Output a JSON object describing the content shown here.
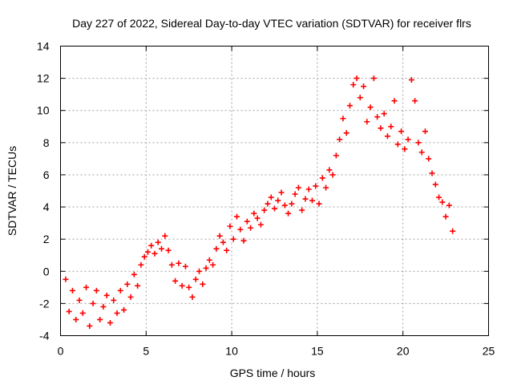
{
  "chart_data": {
    "type": "scatter",
    "title": "Day 227 of 2022, Sidereal Day-to-day VTEC variation (SDTVAR) for receiver flrs",
    "xlabel": "GPS time / hours",
    "ylabel": "SDTVAR / TECUs",
    "xlim": [
      0,
      25
    ],
    "ylim": [
      -4,
      14
    ],
    "x_ticks": [
      "0",
      "5",
      "10",
      "15",
      "20",
      "25"
    ],
    "y_ticks": [
      "-4",
      "-2",
      "0",
      "2",
      "4",
      "6",
      "8",
      "10",
      "12",
      "14"
    ],
    "grid": true,
    "marker": "plus",
    "color": "#ff0000",
    "series": [
      {
        "name": "SDTVAR",
        "x": [
          0.3,
          0.5,
          0.7,
          0.9,
          1.1,
          1.3,
          1.5,
          1.7,
          1.9,
          2.1,
          2.3,
          2.5,
          2.7,
          2.9,
          3.1,
          3.3,
          3.5,
          3.7,
          3.9,
          4.1,
          4.3,
          4.5,
          4.7,
          4.9,
          5.1,
          5.3,
          5.5,
          5.7,
          5.9,
          6.1,
          6.3,
          6.5,
          6.7,
          6.9,
          7.1,
          7.3,
          7.5,
          7.7,
          7.9,
          8.1,
          8.3,
          8.5,
          8.7,
          8.9,
          9.1,
          9.3,
          9.5,
          9.7,
          9.9,
          10.1,
          10.3,
          10.5,
          10.7,
          10.9,
          11.1,
          11.3,
          11.5,
          11.7,
          11.9,
          12.1,
          12.3,
          12.5,
          12.7,
          12.9,
          13.1,
          13.3,
          13.5,
          13.7,
          13.9,
          14.1,
          14.3,
          14.5,
          14.7,
          14.9,
          15.1,
          15.3,
          15.5,
          15.7,
          15.9,
          16.1,
          16.3,
          16.5,
          16.7,
          16.9,
          17.1,
          17.3,
          17.5,
          17.7,
          17.9,
          18.1,
          18.3,
          18.5,
          18.7,
          18.9,
          19.1,
          19.3,
          19.5,
          19.7,
          19.9,
          20.1,
          20.3,
          20.5,
          20.7,
          20.9,
          21.1,
          21.3,
          21.5,
          21.7,
          21.9,
          22.1,
          22.3,
          22.5,
          22.7,
          22.9
        ],
        "y": [
          -0.5,
          -2.5,
          -1.2,
          -3.0,
          -1.8,
          -2.6,
          -1.0,
          -3.4,
          -2.0,
          -1.2,
          -3.0,
          -2.2,
          -1.5,
          -3.2,
          -1.8,
          -2.6,
          -1.2,
          -2.4,
          -0.8,
          -1.6,
          -0.2,
          -0.9,
          0.4,
          0.9,
          1.2,
          1.6,
          1.1,
          1.8,
          1.4,
          2.2,
          1.3,
          0.4,
          -0.6,
          0.5,
          -0.9,
          0.3,
          -1.0,
          -1.6,
          -0.5,
          0.0,
          -0.8,
          0.2,
          0.7,
          0.4,
          1.4,
          2.2,
          1.8,
          1.3,
          2.8,
          2.0,
          3.4,
          2.6,
          1.9,
          3.1,
          2.7,
          3.6,
          3.3,
          2.9,
          3.8,
          4.2,
          4.6,
          3.9,
          4.4,
          4.9,
          4.1,
          3.6,
          4.2,
          4.8,
          5.2,
          3.8,
          4.5,
          5.1,
          4.4,
          5.3,
          4.2,
          5.8,
          5.2,
          6.3,
          6.0,
          7.2,
          8.2,
          9.5,
          8.6,
          10.3,
          11.6,
          12.0,
          10.8,
          11.5,
          9.3,
          10.2,
          12.0,
          9.6,
          8.9,
          9.8,
          8.4,
          9.0,
          10.6,
          7.9,
          8.7,
          7.6,
          8.2,
          11.9,
          10.6,
          8.0,
          7.4,
          8.7,
          7.0,
          6.1,
          5.4,
          4.6,
          4.3,
          3.4,
          4.1,
          2.5
        ]
      }
    ]
  }
}
